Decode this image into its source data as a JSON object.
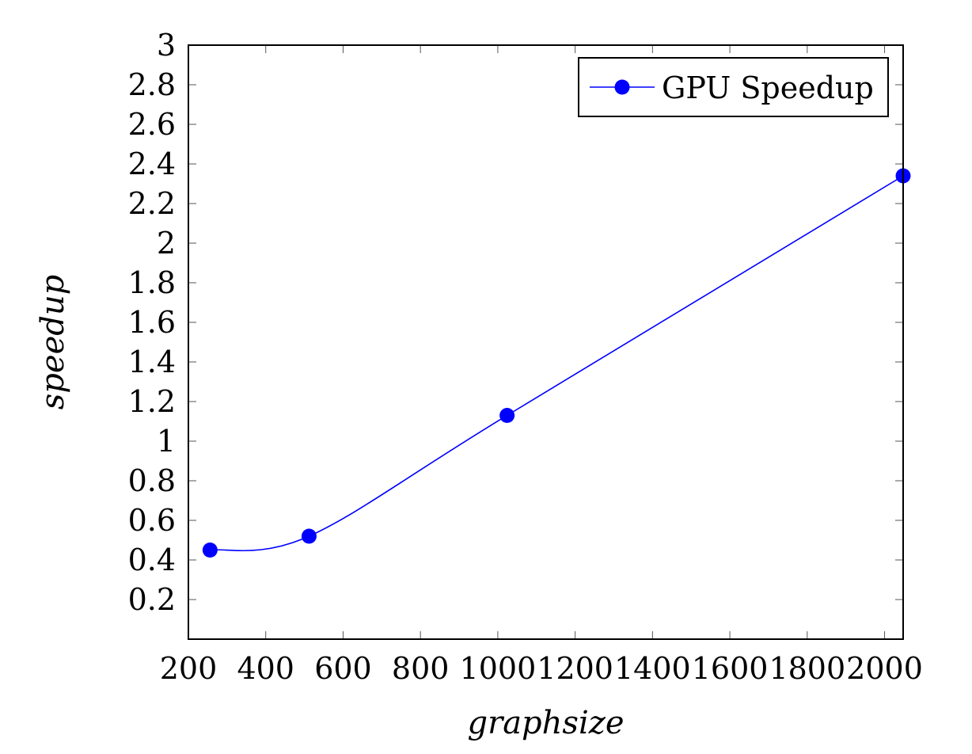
{
  "chart_data": {
    "type": "line",
    "xlabel": "graphsize",
    "ylabel": "speedup",
    "xlim": [
      200,
      2048
    ],
    "ylim": [
      0,
      3
    ],
    "xticks": [
      200,
      400,
      600,
      800,
      1000,
      1200,
      1400,
      1600,
      1800,
      2000
    ],
    "yticks": [
      0.2,
      0.4,
      0.6,
      0.8,
      1,
      1.2,
      1.4,
      1.6,
      1.8,
      2,
      2.2,
      2.4,
      2.6,
      2.8,
      3
    ],
    "xtick_labels": [
      "200",
      "400",
      "600",
      "800",
      "1000",
      "1200",
      "1400",
      "1600",
      "1800",
      "2000"
    ],
    "ytick_labels": [
      "0.2",
      "0.4",
      "0.6",
      "0.8",
      "1",
      "1.2",
      "1.4",
      "1.6",
      "1.8",
      "2",
      "2.2",
      "2.4",
      "2.6",
      "2.8",
      "3"
    ],
    "grid": false,
    "legend_position": "top-right",
    "series": [
      {
        "name": "GPU Speedup",
        "color": "#0000ff",
        "marker": "circle",
        "smooth": true,
        "x": [
          256,
          512,
          1024,
          2048
        ],
        "y": [
          0.45,
          0.52,
          1.13,
          2.34
        ]
      }
    ]
  }
}
